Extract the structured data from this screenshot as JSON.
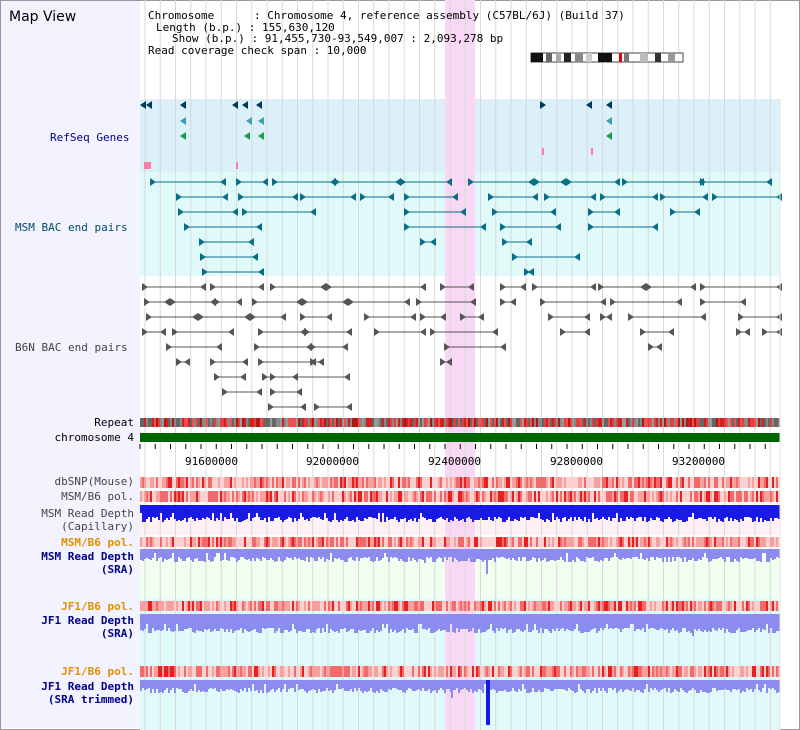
{
  "app": {
    "title": "Map View"
  },
  "info": {
    "lines": [
      "Chromosome      : Chromosome 4, reference assembly (C57BL/6J) (Build 37)",
      "Length (b.p.) : 155,630,120",
      "Show (b.p.) : 91,455,730-93,549,007 : 2,093,278 bp",
      "Read coverage check span : 10,000"
    ]
  },
  "tracks": {
    "refseq": "RefSeq Genes",
    "msm_bac": "MSM BAC end pairs",
    "b6n_bac": "B6N BAC end pairs",
    "repeat": "Repeat",
    "chromosome": "chromosome 4",
    "dbsnp": "dbSNP(Mouse)",
    "msm_b6_pol_1": "MSM/B6 pol.",
    "msm_depth_cap_1": "MSM Read Depth",
    "msm_depth_cap_2": "(Capillary)",
    "msm_b6_pol_2": "MSM/B6 pol.",
    "msm_depth_sra_1": "MSM Read Depth",
    "msm_depth_sra_2": "(SRA)",
    "jf1_b6_pol_1": "JF1/B6 pol.",
    "jf1_depth_sra_1": "JF1 Read Depth",
    "jf1_depth_sra_2": "(SRA)",
    "jf1_b6_pol_2": "JF1/B6 pol.",
    "jf1_depth_trim_1": "JF1 Read Depth",
    "jf1_depth_trim_2": "(SRA trimmed)"
  },
  "ruler": {
    "ticks": [
      "91600000",
      "92000000",
      "92400000",
      "92800000",
      "93200000"
    ]
  },
  "colors": {
    "refseq_bg": "#dcf0fa",
    "msm_bg": "#e0fafa",
    "highlight": "#f8d8f4",
    "chromosome": "#006400",
    "depth_dark": "#1a1ae6",
    "depth_light": "#8c8cf0",
    "pol_red": "#e83030"
  }
}
